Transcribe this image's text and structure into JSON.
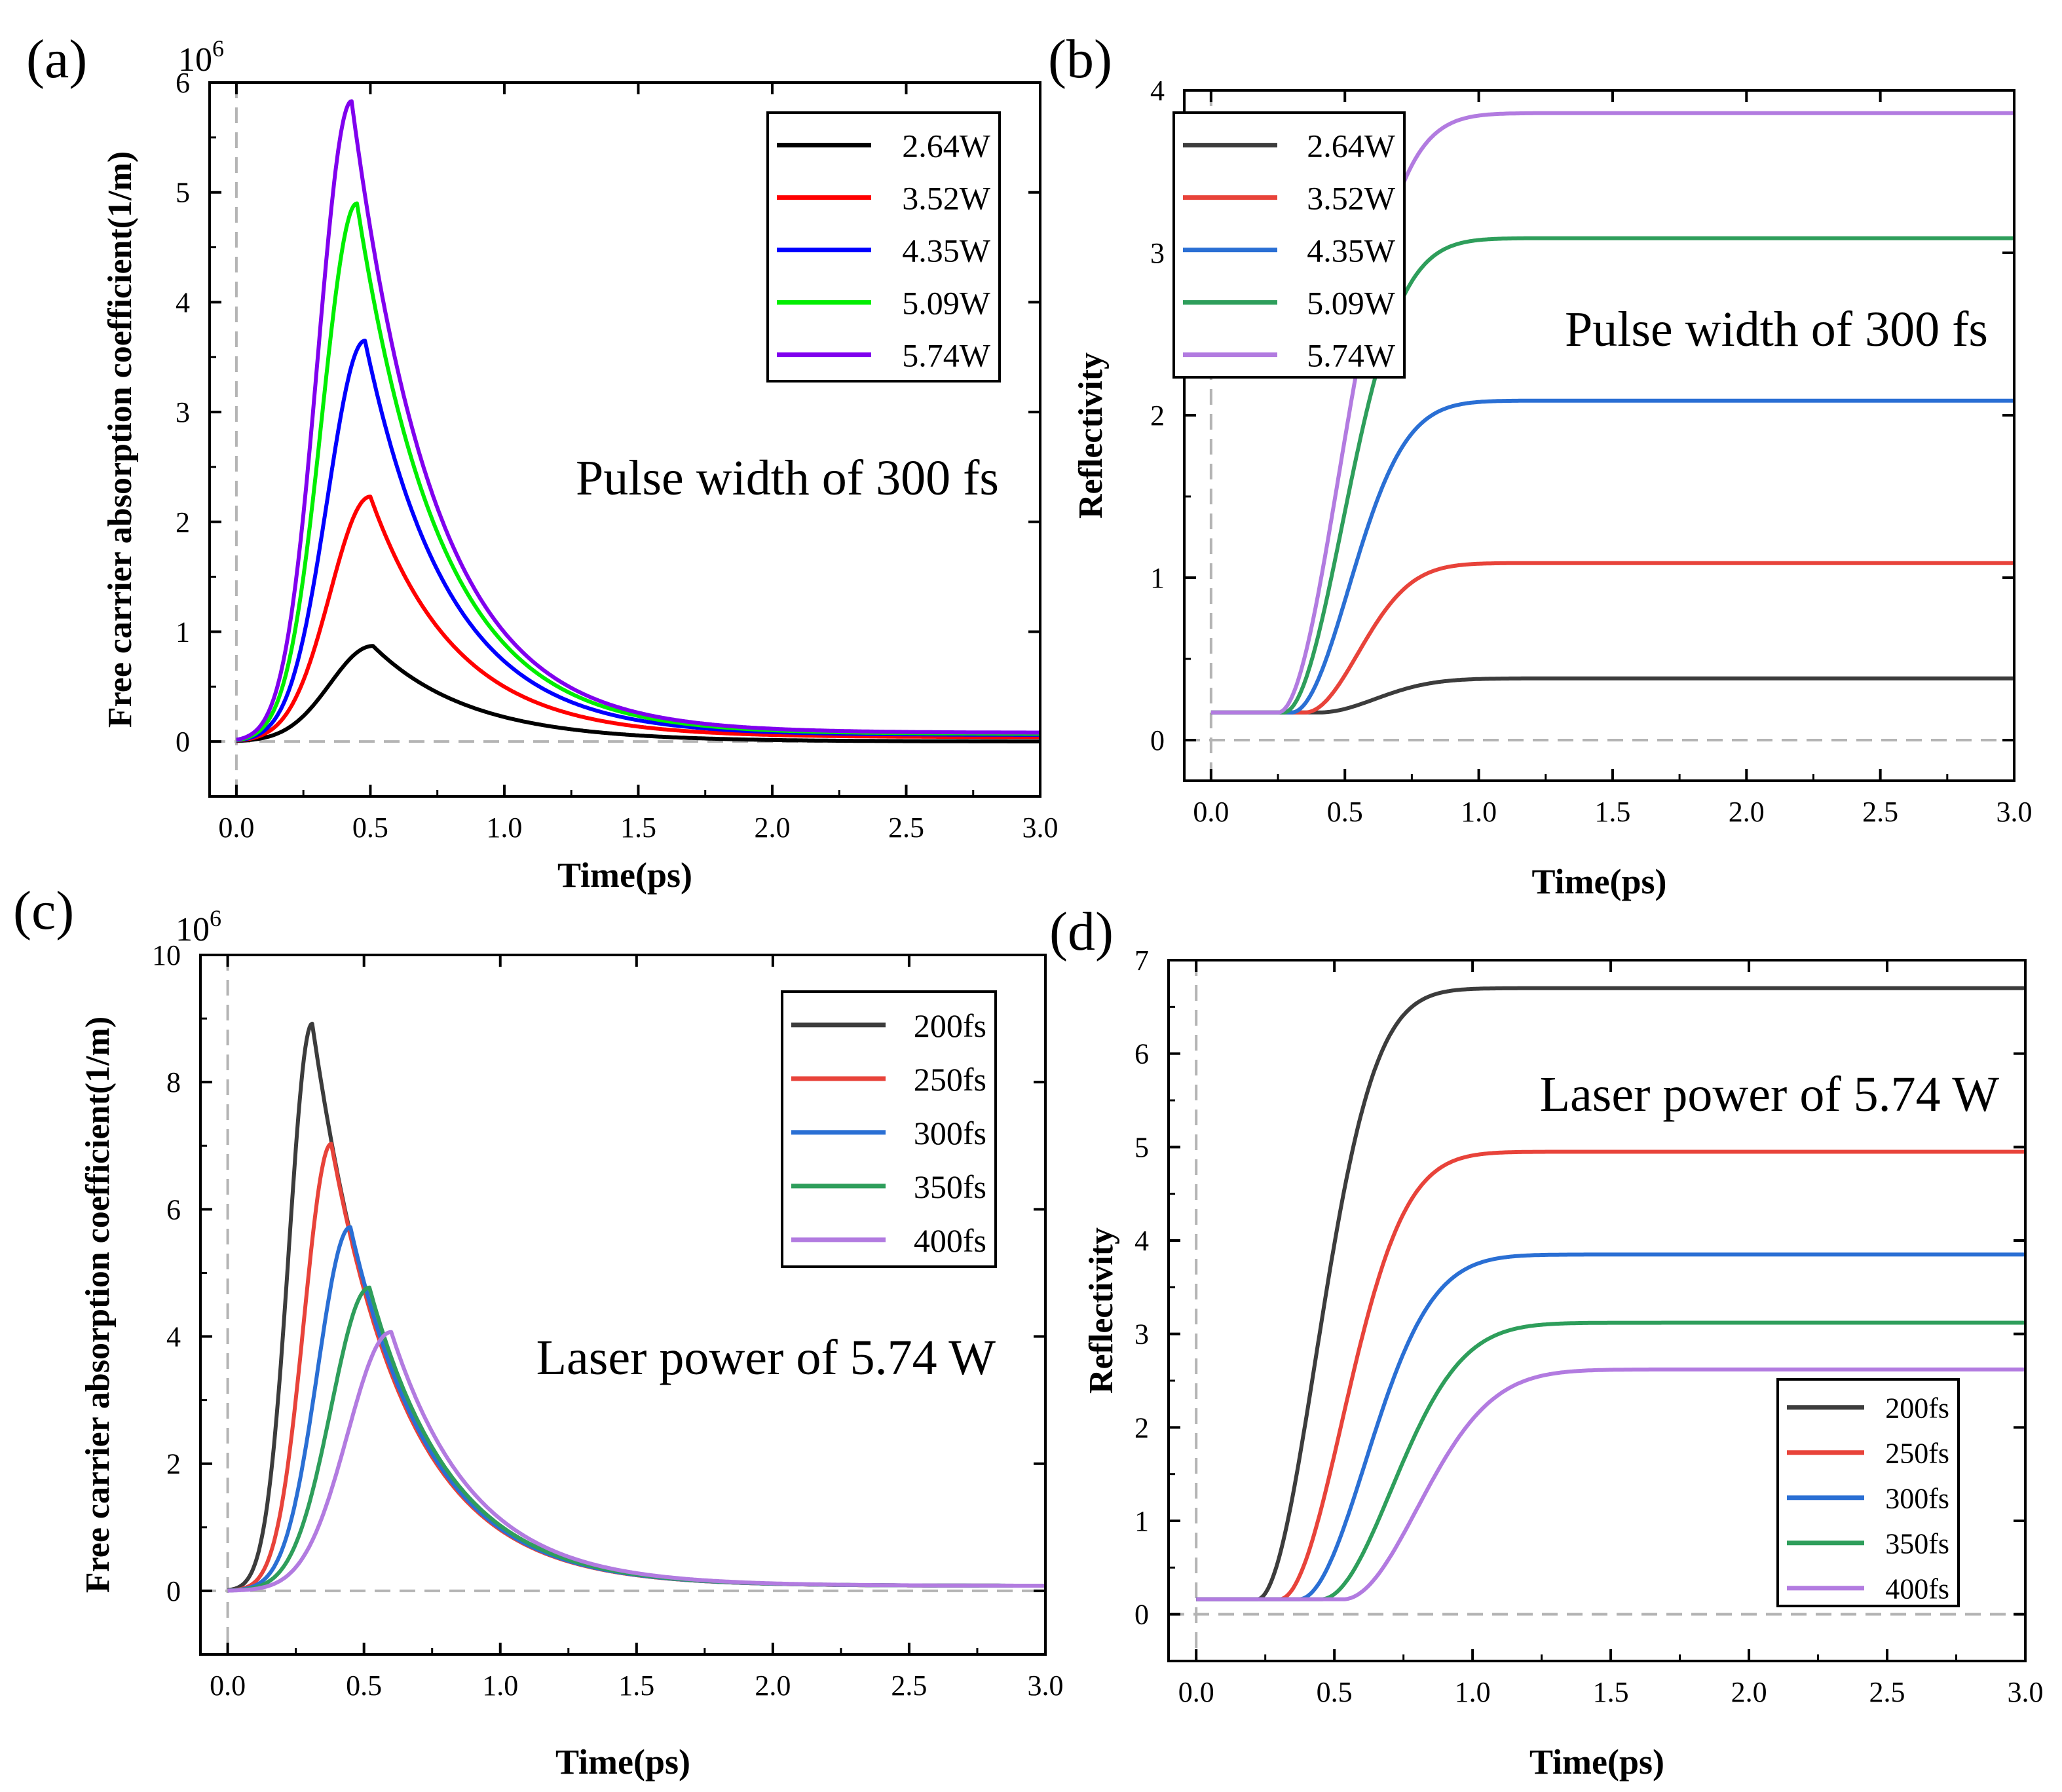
{
  "chart_data": [
    {
      "panel_label": "(a)",
      "type": "line",
      "ylabel": "Free carrier absorption coefficient(1/m)",
      "xlabel": "Time(ps)",
      "y_multiplier": "10",
      "y_multiplier_exp": "6",
      "xlim": [
        -0.1,
        3.0
      ],
      "ylim": [
        -0.5,
        6.0
      ],
      "xticks": [
        0,
        0.5,
        1,
        1.5,
        2,
        2.5,
        3
      ],
      "xtick_labels": [
        "0.0",
        "0.5",
        "1.0",
        "1.5",
        "2.0",
        "2.5",
        "3.0"
      ],
      "yticks": [
        0,
        1,
        2,
        3,
        4,
        5,
        6
      ],
      "ytick_labels": [
        "0",
        "1",
        "2",
        "3",
        "4",
        "5",
        "6"
      ],
      "annotation": "Pulse width of 300 fs",
      "legend_position": "top-right",
      "curve_kind": "absorption",
      "series": [
        {
          "name": "2.64W",
          "color": "#000000",
          "peak": 0.87,
          "tpeak": 0.51,
          "base": 0.0,
          "rise": 0.16,
          "decay": 0.36
        },
        {
          "name": "3.52W",
          "color": "#ff0000",
          "peak": 2.23,
          "tpeak": 0.5,
          "base": 0.04,
          "rise": 0.15,
          "decay": 0.32
        },
        {
          "name": "4.35W",
          "color": "#0000ff",
          "peak": 3.65,
          "tpeak": 0.48,
          "base": 0.06,
          "rise": 0.14,
          "decay": 0.31
        },
        {
          "name": "5.09W",
          "color": "#00ee00",
          "peak": 4.9,
          "tpeak": 0.45,
          "base": 0.07,
          "rise": 0.13,
          "decay": 0.31
        },
        {
          "name": "5.74W",
          "color": "#8000ee",
          "peak": 5.83,
          "tpeak": 0.43,
          "base": 0.08,
          "rise": 0.125,
          "decay": 0.31
        }
      ]
    },
    {
      "panel_label": "(b)",
      "type": "line",
      "ylabel": "Reflectivity",
      "xlabel": "Time(ps)",
      "xlim": [
        -0.1,
        3.0
      ],
      "ylim": [
        -0.25,
        4.0
      ],
      "xticks": [
        0,
        0.5,
        1,
        1.5,
        2,
        2.5,
        3
      ],
      "xtick_labels": [
        "0.0",
        "0.5",
        "1.0",
        "1.5",
        "2.0",
        "2.5",
        "3.0"
      ],
      "yticks": [
        0,
        1,
        2,
        3,
        4
      ],
      "ytick_labels": [
        "0",
        "1",
        "2",
        "3",
        "4"
      ],
      "annotation": "Pulse width of 300 fs",
      "legend_position": "top-left",
      "curve_kind": "reflectivity",
      "series": [
        {
          "name": "2.64W",
          "color": "#3c3c3c",
          "base": 0.17,
          "final": 0.38,
          "t0": 0.4,
          "tau": 0.3
        },
        {
          "name": "3.52W",
          "color": "#e8433a",
          "base": 0.17,
          "final": 1.09,
          "t0": 0.35,
          "tau": 0.28
        },
        {
          "name": "4.35W",
          "color": "#2a6fd4",
          "base": 0.17,
          "final": 2.09,
          "t0": 0.3,
          "tau": 0.3
        },
        {
          "name": "5.09W",
          "color": "#2e9e5b",
          "base": 0.17,
          "final": 3.09,
          "t0": 0.27,
          "tau": 0.31
        },
        {
          "name": "5.74W",
          "color": "#b27be0",
          "base": 0.17,
          "final": 3.86,
          "t0": 0.25,
          "tau": 0.32
        }
      ]
    },
    {
      "panel_label": "(c)",
      "type": "line",
      "ylabel": "Free carrier absorption coefficient(1/m)",
      "xlabel": "Time(ps)",
      "y_multiplier": "10",
      "y_multiplier_exp": "6",
      "xlim": [
        -0.1,
        3.0
      ],
      "ylim": [
        -1.0,
        10.0
      ],
      "xticks": [
        0,
        0.5,
        1,
        1.5,
        2,
        2.5,
        3
      ],
      "xtick_labels": [
        "0.0",
        "0.5",
        "1.0",
        "1.5",
        "2.0",
        "2.5",
        "3.0"
      ],
      "yticks": [
        0,
        2,
        4,
        6,
        8,
        10
      ],
      "ytick_labels": [
        "0",
        "2",
        "4",
        "6",
        "8",
        "10"
      ],
      "annotation": "Laser power of 5.74 W",
      "legend_position": "top-right",
      "curve_kind": "absorption",
      "series": [
        {
          "name": "200fs",
          "color": "#3c3c3c",
          "peak": 8.92,
          "tpeak": 0.31,
          "base": 0.08,
          "rise": 0.085,
          "decay": 0.3
        },
        {
          "name": "250fs",
          "color": "#e8433a",
          "peak": 7.03,
          "tpeak": 0.38,
          "base": 0.08,
          "rise": 0.1,
          "decay": 0.3
        },
        {
          "name": "300fs",
          "color": "#2a6fd4",
          "peak": 5.72,
          "tpeak": 0.45,
          "base": 0.08,
          "rise": 0.12,
          "decay": 0.3
        },
        {
          "name": "350fs",
          "color": "#2e9e5b",
          "peak": 4.77,
          "tpeak": 0.52,
          "base": 0.08,
          "rise": 0.14,
          "decay": 0.3
        },
        {
          "name": "400fs",
          "color": "#b27be0",
          "peak": 4.07,
          "tpeak": 0.6,
          "base": 0.08,
          "rise": 0.16,
          "decay": 0.3
        }
      ]
    },
    {
      "panel_label": "(d)",
      "type": "line",
      "ylabel": "Reflectivity",
      "xlabel": "Time(ps)",
      "xlim": [
        -0.1,
        3.0
      ],
      "ylim": [
        -0.5,
        7.0
      ],
      "xticks": [
        0,
        0.5,
        1,
        1.5,
        2,
        2.5,
        3
      ],
      "xtick_labels": [
        "0.0",
        "0.5",
        "1.0",
        "1.5",
        "2.0",
        "2.5",
        "3.0"
      ],
      "yticks": [
        0,
        1,
        2,
        3,
        4,
        5,
        6,
        7
      ],
      "ytick_labels": [
        "0",
        "1",
        "2",
        "3",
        "4",
        "5",
        "6",
        "7"
      ],
      "annotation": "Laser power of 5.74 W",
      "legend_position": "bottom-right",
      "curve_kind": "reflectivity",
      "series": [
        {
          "name": "200fs",
          "color": "#3c3c3c",
          "base": 0.16,
          "final": 6.7,
          "t0": 0.22,
          "tau": 0.3
        },
        {
          "name": "250fs",
          "color": "#e8433a",
          "base": 0.16,
          "final": 4.95,
          "t0": 0.3,
          "tau": 0.32
        },
        {
          "name": "300fs",
          "color": "#2a6fd4",
          "base": 0.16,
          "final": 3.85,
          "t0": 0.37,
          "tau": 0.34
        },
        {
          "name": "350fs",
          "color": "#2e9e5b",
          "base": 0.16,
          "final": 3.12,
          "t0": 0.45,
          "tau": 0.36
        },
        {
          "name": "400fs",
          "color": "#b27be0",
          "base": 0.16,
          "final": 2.62,
          "t0": 0.53,
          "tau": 0.38
        }
      ]
    }
  ]
}
